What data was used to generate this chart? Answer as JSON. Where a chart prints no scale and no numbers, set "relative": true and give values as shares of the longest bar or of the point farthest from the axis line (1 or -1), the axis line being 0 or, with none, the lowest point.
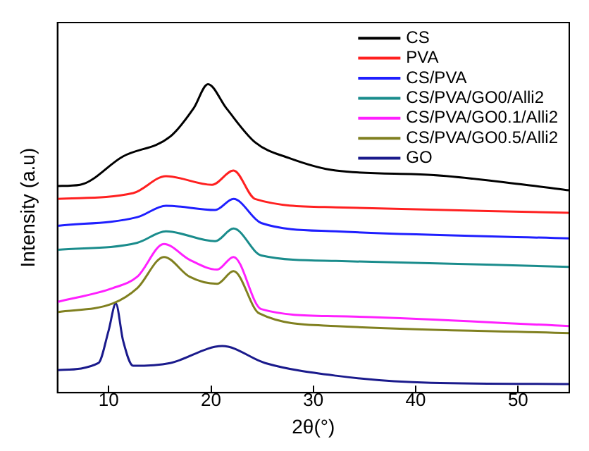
{
  "chart_data": {
    "type": "line",
    "xlabel": "2θ(°)",
    "ylabel": "Intensity (a.u)",
    "relative": true,
    "xlim": [
      5,
      55
    ],
    "xticks": [
      10,
      20,
      30,
      40,
      50
    ],
    "grid": false,
    "legend": "top right",
    "marker": "none",
    "line_style": "solid",
    "series": [
      {
        "name": "CS",
        "color": "#000000",
        "x": [
          5,
          7.2,
          11.4,
          16,
          18.3,
          19.7,
          21.5,
          24.3,
          27.6,
          32.2,
          41.5,
          50.7,
          55
        ],
        "values": [
          0.67,
          0.674,
          0.766,
          0.83,
          0.922,
          1,
          0.922,
          0.812,
          0.761,
          0.72,
          0.706,
          0.674,
          0.656
        ]
      },
      {
        "name": "PVA",
        "color": "#ff2020",
        "x": [
          5,
          12.4,
          15.6,
          20.1,
          22.2,
          24.3,
          32.2,
          55
        ],
        "values": [
          0.628,
          0.647,
          0.702,
          0.674,
          0.72,
          0.628,
          0.601,
          0.583
        ]
      },
      {
        "name": "CS/PVA",
        "color": "#1f1fff",
        "x": [
          5,
          12.8,
          15.6,
          20.4,
          22.2,
          24.9,
          32.2,
          55
        ],
        "values": [
          0.541,
          0.569,
          0.606,
          0.592,
          0.628,
          0.55,
          0.523,
          0.5
        ]
      },
      {
        "name": "CS/PVA/GO0/Alli2",
        "color": "#1a8c8c",
        "x": [
          5,
          12.8,
          15.6,
          20.4,
          22.2,
          24.9,
          32.2,
          55
        ],
        "values": [
          0.463,
          0.486,
          0.523,
          0.491,
          0.532,
          0.445,
          0.427,
          0.408
        ]
      },
      {
        "name": "CS/PVA/GO0.1/Alli2",
        "color": "#ff20ff",
        "x": [
          5,
          10.4,
          12.8,
          15.4,
          17.9,
          20.6,
          22.2,
          24.9,
          32.2,
          55
        ],
        "values": [
          0.294,
          0.339,
          0.376,
          0.482,
          0.431,
          0.399,
          0.44,
          0.271,
          0.248,
          0.216
        ]
      },
      {
        "name": "CS/PVA/GO0.5/Alli2",
        "color": "#808020",
        "x": [
          5,
          10.4,
          12.8,
          15.4,
          17.9,
          20.6,
          22.2,
          24.7,
          32.2,
          55
        ],
        "values": [
          0.261,
          0.289,
          0.339,
          0.44,
          0.376,
          0.353,
          0.394,
          0.257,
          0.216,
          0.193
        ]
      },
      {
        "name": "GO",
        "color": "#1a1a8c",
        "x": [
          5,
          9,
          10,
          10.7,
          11.4,
          12.4,
          16,
          21.1,
          25.3,
          32.2,
          41.5,
          55
        ],
        "values": [
          0.073,
          0.096,
          0.202,
          0.289,
          0.17,
          0.087,
          0.096,
          0.151,
          0.096,
          0.055,
          0.032,
          0.028
        ]
      }
    ]
  }
}
